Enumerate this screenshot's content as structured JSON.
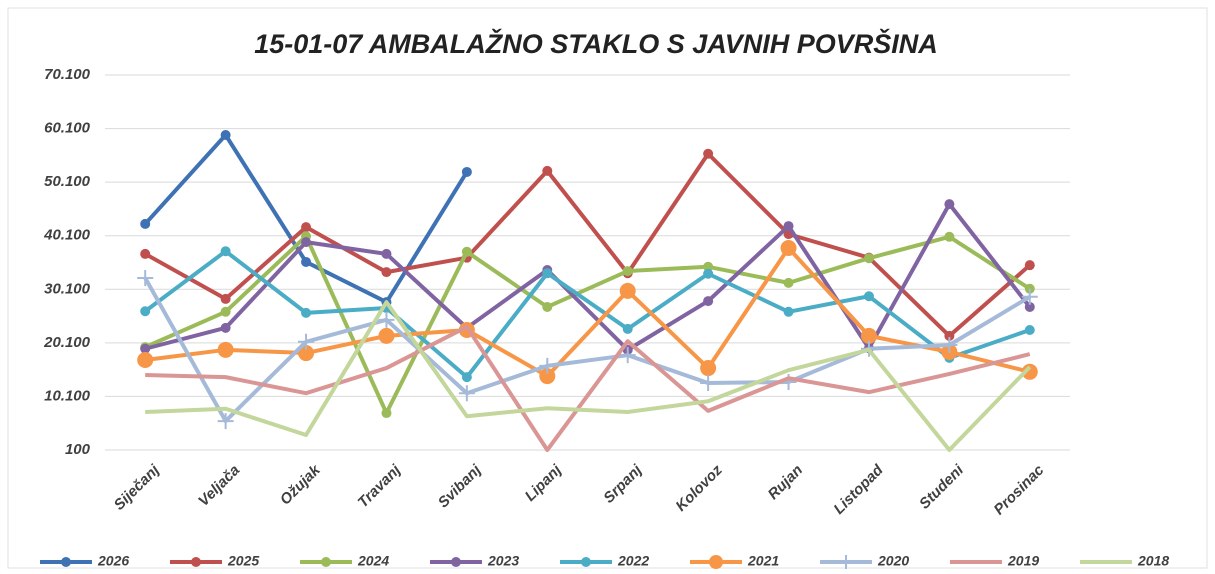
{
  "chart_data": {
    "type": "line",
    "title": "15-01-07 AMBALAŽNO STAKLO S JAVNIH POVRŠINA",
    "categories": [
      "Siječanj",
      "Veljača",
      "Ožujak",
      "Travanj",
      "Svibanj",
      "Lipanj",
      "Srpanj",
      "Kolovoz",
      "Rujan",
      "Listopad",
      "Studeni",
      "Prosinac"
    ],
    "ylim": [
      100,
      70100
    ],
    "yticks": [
      100,
      {
        "value": 10100,
        "label": "10.100"
      },
      {
        "value": 20100,
        "label": "20.100"
      },
      {
        "value": 30100,
        "label": "30.100"
      },
      {
        "value": 40100,
        "label": "40.100"
      },
      {
        "value": 50100,
        "label": "50.100"
      },
      {
        "value": 60100,
        "label": "60.100"
      },
      {
        "value": 70100,
        "label": "70.100"
      }
    ],
    "grid": true,
    "legend": "bottom",
    "series": [
      {
        "name": "2026",
        "color": "#3e72b4",
        "marker": "circle",
        "values": [
          42300,
          58900,
          35200,
          27700,
          52000,
          null,
          null,
          null,
          null,
          null,
          null,
          null
        ]
      },
      {
        "name": "2025",
        "color": "#c0504d",
        "marker": "circle",
        "values": [
          36700,
          28300,
          41700,
          33300,
          36000,
          52200,
          33100,
          55400,
          40400,
          36000,
          21400,
          34600
        ]
      },
      {
        "name": "2024",
        "color": "#9bbb59",
        "marker": "circle",
        "values": [
          19300,
          25900,
          40000,
          7000,
          37100,
          26800,
          33500,
          34300,
          31300,
          35900,
          39900,
          30200
        ]
      },
      {
        "name": "2023",
        "color": "#8064a2",
        "marker": "circle",
        "values": [
          19000,
          22900,
          38900,
          36700,
          22900,
          33700,
          18800,
          27900,
          41900,
          19100,
          46000,
          26800
        ]
      },
      {
        "name": "2022",
        "color": "#4bacc6",
        "marker": "circle",
        "values": [
          26000,
          37200,
          25700,
          26600,
          13700,
          33100,
          22700,
          33000,
          25900,
          28800,
          17300,
          22500
        ]
      },
      {
        "name": "2021",
        "color": "#f79646",
        "marker": "big-circle",
        "values": [
          16900,
          18800,
          18200,
          21400,
          22500,
          13900,
          29800,
          15400,
          37800,
          21400,
          18400,
          14700
        ]
      },
      {
        "name": "2020",
        "color": "#a5b9d9",
        "marker": "plus",
        "values": [
          32200,
          5500,
          20300,
          24400,
          10700,
          15800,
          17800,
          12600,
          12800,
          19000,
          19700,
          28700
        ]
      },
      {
        "name": "2019",
        "color": "#d99694",
        "marker": "none",
        "values": [
          14100,
          13700,
          10700,
          15400,
          23100,
          100,
          20400,
          7400,
          13500,
          10900,
          14300,
          18000
        ]
      },
      {
        "name": "2018",
        "color": "#c3d69b",
        "marker": "none",
        "values": [
          7200,
          7800,
          2900,
          27700,
          6400,
          7900,
          7200,
          9200,
          15000,
          18800,
          100,
          15600
        ]
      }
    ]
  }
}
